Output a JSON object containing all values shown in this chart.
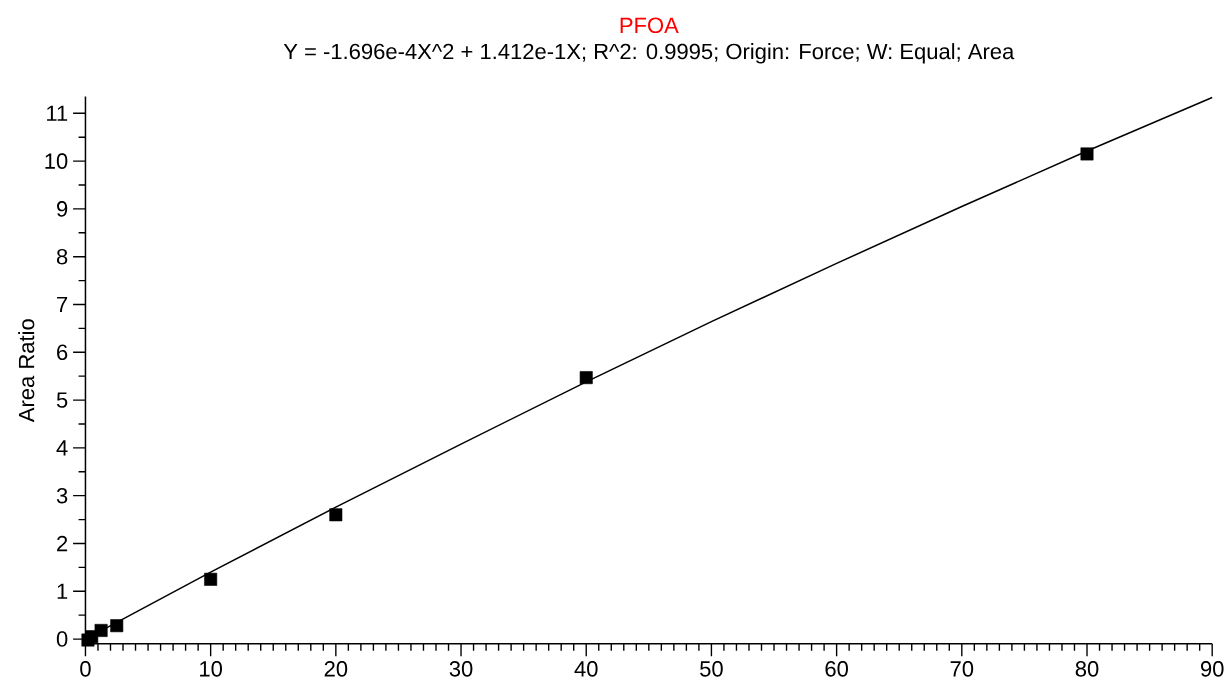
{
  "chart_data": {
    "type": "scatter",
    "title": "PFOA",
    "subtitle": "Y = -1.696e-4X^2 + 1.412e-1X; R^2: 0.9995; Origin: Force; W: Equal; Area",
    "ylabel": "Area Ratio",
    "series": [
      {
        "color": "#000000",
        "marker": "square",
        "x": [
          0.2,
          0.5,
          1.25,
          2.5,
          10,
          20,
          40,
          80
        ],
        "values": [
          -0.02,
          0.05,
          0.18,
          0.28,
          1.25,
          2.6,
          5.47,
          10.15
        ]
      },
      {
        "type": "line",
        "color": "#000000",
        "marker": "none",
        "x": [
          0,
          10,
          20,
          30,
          40,
          50,
          60,
          70,
          80,
          90
        ],
        "values": [
          0,
          1.4,
          2.76,
          4.08,
          5.38,
          6.64,
          7.86,
          9.05,
          10.21,
          11.33
        ]
      }
    ],
    "xlim": [
      0,
      90
    ],
    "ylim": [
      -0.1,
      11.35
    ],
    "xticks": [
      0,
      10,
      20,
      30,
      40,
      50,
      60,
      70,
      80,
      90
    ],
    "yticks": [
      0,
      1,
      2,
      3,
      4,
      5,
      6,
      7,
      8,
      9,
      10,
      11
    ],
    "grid": false
  }
}
